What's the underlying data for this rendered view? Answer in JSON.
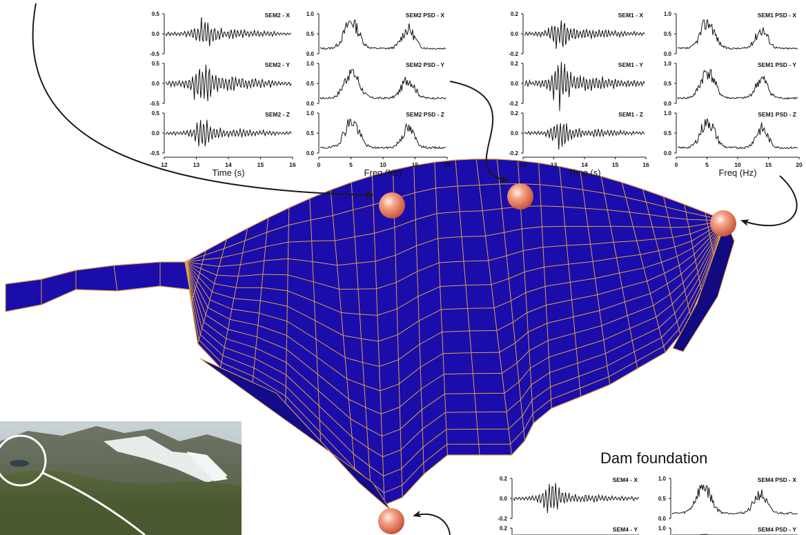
{
  "labels": {
    "dam_foundation": "Dam foundation",
    "time_axis": "Time (s)",
    "freq_axis": "Freq (Hz)"
  },
  "colors": {
    "mesh_fill": "#1a0dab",
    "mesh_line": "#e0a040",
    "sensor": "#f08060",
    "arrow": "#1a1a1a"
  },
  "plot_groups": [
    {
      "id": "sem2",
      "time_panels": [
        {
          "title": "SEM2 - X",
          "yticks": [
            "0.5",
            "0.0",
            "-0.5"
          ],
          "seed": 3,
          "amp": 0.55
        },
        {
          "title": "SEM2 - Y",
          "yticks": [
            "0.5",
            "0.0",
            "-0.5"
          ],
          "seed": 7,
          "amp": 0.9
        },
        {
          "title": "SEM2 - Z",
          "yticks": [
            "0.5",
            "0.0",
            "-0.5"
          ],
          "seed": 11,
          "amp": 0.5
        }
      ],
      "psd_panels": [
        {
          "title": "SEM2 PSD - X",
          "yticks": [
            "1.0",
            "0.5",
            "0.0"
          ],
          "seed": 13
        },
        {
          "title": "SEM2 PSD - Y",
          "yticks": [
            "1.0",
            "0.5",
            "0.0"
          ],
          "seed": 17
        },
        {
          "title": "SEM2 PSD - Z",
          "yticks": [
            "1.0",
            "0.5",
            "0.0"
          ],
          "seed": 19
        }
      ],
      "time_xticks": [
        "12",
        "13",
        "14",
        "15",
        "16"
      ],
      "freq_xticks": [
        "0",
        "5",
        "10",
        "15",
        "20"
      ]
    },
    {
      "id": "sem1",
      "time_panels": [
        {
          "title": "SEM1 - X",
          "yticks": [
            "0.2",
            "0.0",
            "-0.2"
          ],
          "seed": 23,
          "amp": 0.6
        },
        {
          "title": "SEM1 - Y",
          "yticks": [
            "0.2",
            "0.0",
            "-0.2"
          ],
          "seed": 29,
          "amp": 0.85
        },
        {
          "title": "SEM1 - Z",
          "yticks": [
            "0.2",
            "0.0",
            "-0.2"
          ],
          "seed": 31,
          "amp": 0.5
        }
      ],
      "psd_panels": [
        {
          "title": "SEM1 PSD - X",
          "yticks": [
            "1.0",
            "0.5",
            "0.0"
          ],
          "seed": 37
        },
        {
          "title": "SEM1 PSD - Y",
          "yticks": [
            "1.0",
            "0.5",
            "0.0"
          ],
          "seed": 41
        },
        {
          "title": "SEM1 PSD - Z",
          "yticks": [
            "1.0",
            "0.5",
            "0.0"
          ],
          "seed": 43
        }
      ],
      "time_xticks": [
        "12",
        "13",
        "14",
        "15",
        "16"
      ],
      "freq_xticks": [
        "0",
        "5",
        "10",
        "15",
        "20"
      ]
    },
    {
      "id": "sem4",
      "time_panels": [
        {
          "title": "SEM4 - X",
          "yticks": [
            "0.2",
            "0.0",
            "-0.2"
          ],
          "seed": 47,
          "amp": 0.55
        },
        {
          "title": "SEM4 - Y",
          "yticks": [
            "0.2"
          ],
          "seed": 53,
          "amp": 0.5
        }
      ],
      "psd_panels": [
        {
          "title": "SEM4 PSD - X",
          "yticks": [
            "1.0",
            "0.5",
            "0.0"
          ],
          "seed": 59
        },
        {
          "title": "SEM4 PSD - Y",
          "yticks": [
            "1.0"
          ],
          "seed": 61
        }
      ],
      "time_xticks": [],
      "freq_xticks": []
    }
  ]
}
